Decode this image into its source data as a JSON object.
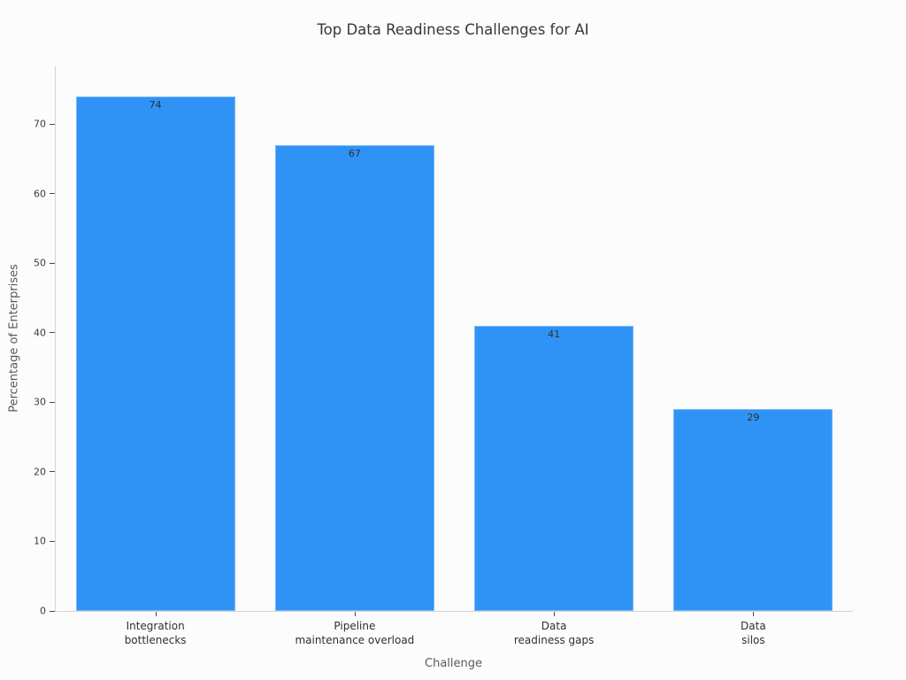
{
  "figure": {
    "background": "#fcfcfc"
  },
  "chart_data": {
    "type": "bar",
    "title": "Top Data Readiness Challenges for AI",
    "xlabel": "Challenge",
    "ylabel": "Percentage of Enterprises",
    "categories": [
      "Integration\nbottlenecks",
      "Pipeline\nmaintenance overload",
      "Data\nreadiness gaps",
      "Data\nsilos"
    ],
    "values": [
      74,
      67,
      41,
      29
    ],
    "value_labels": [
      "74",
      "67",
      "41",
      "29"
    ],
    "yticks": [
      0,
      10,
      20,
      30,
      40,
      50,
      60,
      70
    ],
    "ylim": [
      0,
      78.3
    ],
    "bar_color": "#2f93f6",
    "grid": false,
    "legend_visible": false,
    "axis_colors": {
      "spine": "#d4d4d4",
      "tick_mark": "#4a4a4a",
      "tick_label": "#3c3c3c",
      "axis_label": "#5a5a5a",
      "title": "#383838",
      "value_label": "#2f2f2f"
    }
  }
}
